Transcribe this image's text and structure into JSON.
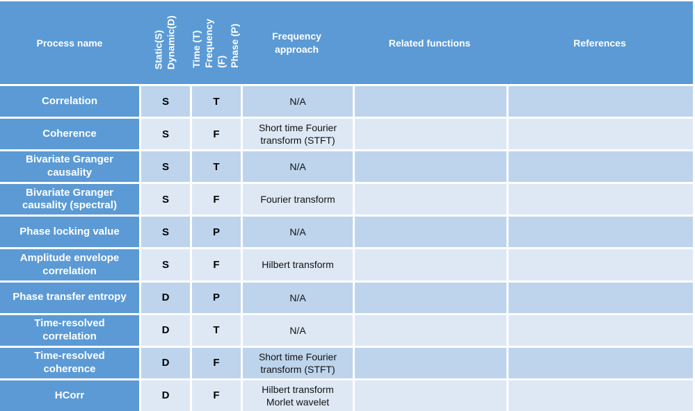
{
  "colors": {
    "header_blue": "#5B9AD5",
    "row_band_dark": "#BDD4EC",
    "row_band_light": "#DEE8F5",
    "grid_line": "#FFFFFF",
    "header_text": "#FFFFFF",
    "body_text": "#000000"
  },
  "table": {
    "header": {
      "process": "Process name",
      "static_dynamic": "Static(S)\nDynamic(D)",
      "time_frequency_phase": "Time (T)\nFrequency (F)\nPhase (P)",
      "frequency_approach": "Frequency\napproach",
      "related_functions": "Related functions",
      "references": "References"
    },
    "rows": [
      {
        "process": "Correlation",
        "static_dynamic": "S",
        "time_frequency_phase": "T",
        "frequency_approach": "N/A",
        "related_functions": "",
        "references": ""
      },
      {
        "process": "Coherence",
        "static_dynamic": "S",
        "time_frequency_phase": "F",
        "frequency_approach": "Short time Fourier\ntransform (STFT)",
        "related_functions": "",
        "references": ""
      },
      {
        "process": "Bivariate Granger\ncausality",
        "static_dynamic": "S",
        "time_frequency_phase": "T",
        "frequency_approach": "N/A",
        "related_functions": "",
        "references": ""
      },
      {
        "process": "Bivariate Granger\ncausality (spectral)",
        "static_dynamic": "S",
        "time_frequency_phase": "F",
        "frequency_approach": "Fourier transform",
        "related_functions": "",
        "references": ""
      },
      {
        "process": "Phase locking value",
        "static_dynamic": "S",
        "time_frequency_phase": "P",
        "frequency_approach": "N/A",
        "related_functions": "",
        "references": ""
      },
      {
        "process": "Amplitude envelope\ncorrelation",
        "static_dynamic": "S",
        "time_frequency_phase": "F",
        "frequency_approach": "Hilbert transform",
        "related_functions": "",
        "references": ""
      },
      {
        "process": "Phase transfer entropy",
        "static_dynamic": "D",
        "time_frequency_phase": "P",
        "frequency_approach": "N/A",
        "related_functions": "",
        "references": ""
      },
      {
        "process": "Time-resolved\ncorrelation",
        "static_dynamic": "D",
        "time_frequency_phase": "T",
        "frequency_approach": "N/A",
        "related_functions": "",
        "references": ""
      },
      {
        "process": "Time-resolved\ncoherence",
        "static_dynamic": "D",
        "time_frequency_phase": "F",
        "frequency_approach": "Short time Fourier\ntransform (STFT)",
        "related_functions": "",
        "references": ""
      },
      {
        "process": "HCorr",
        "static_dynamic": "D",
        "time_frequency_phase": "F",
        "frequency_approach": "Hilbert transform\nMorlet wavelet",
        "related_functions": "",
        "references": ""
      }
    ]
  }
}
